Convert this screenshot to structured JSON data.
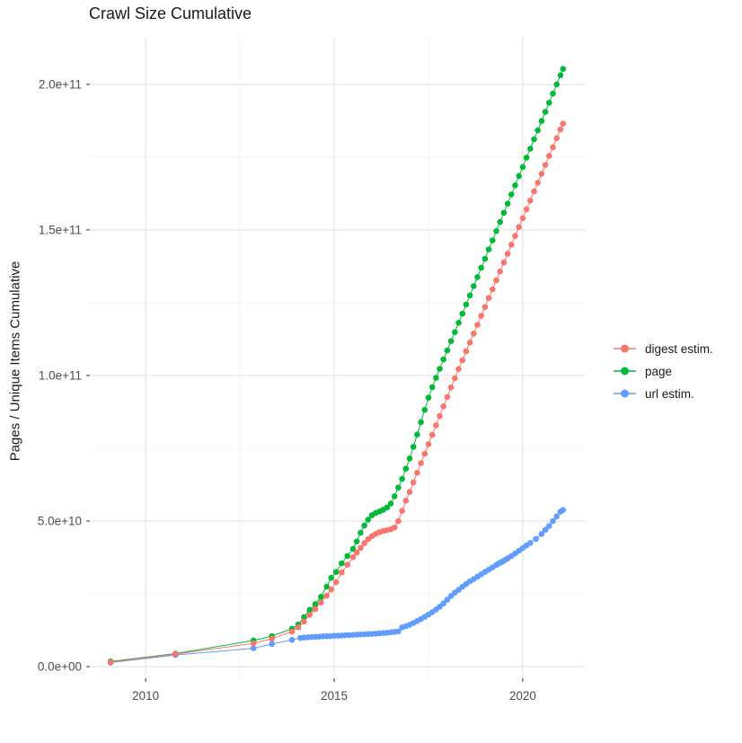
{
  "title": "Crawl Size Cumulative",
  "y_axis_label": "Pages / Unique Items Cumulative",
  "colors": {
    "digest": "#F8766D",
    "page": "#00BA38",
    "url": "#619CFF",
    "grid_major": "#E5E5E5",
    "grid_minor": "#F2F2F2",
    "tick_mark": "#333333",
    "tick_text": "#4D4D4D",
    "title_text": "#1A1A1A"
  },
  "chart_data": {
    "type": "scatter",
    "title": "Crawl Size Cumulative",
    "xlabel": "",
    "ylabel": "Pages / Unique Items Cumulative",
    "grid": "on",
    "legend_position": "right",
    "points_unit": "1e9",
    "x_range": [
      2008.52,
      2021.67
    ],
    "y_range_e9": [
      -4,
      216
    ],
    "x_ticks": {
      "values": [
        2010,
        2015,
        2020
      ],
      "labels": [
        "2010",
        "2015",
        "2020"
      ],
      "minor": [
        2012.5,
        2017.5
      ]
    },
    "y_ticks": {
      "values_e9": [
        0,
        50,
        100,
        150,
        200
      ],
      "labels": [
        "0.0e+00",
        "5.0e+10",
        "1.0e+11",
        "1.5e+11",
        "2.0e+11"
      ],
      "minor_e9": [
        25,
        75,
        125,
        175
      ]
    },
    "draw_order": [
      "page",
      "url estim.",
      "digest estim."
    ],
    "series": [
      {
        "name": "digest estim.",
        "color": "#F8766D",
        "points": [
          [
            2009.07,
            1.6
          ],
          [
            2010.79,
            4.3
          ],
          [
            2012.86,
            8.0
          ],
          [
            2013.35,
            9.6
          ],
          [
            2013.88,
            12.0
          ],
          [
            2014.05,
            13.5
          ],
          [
            2014.2,
            15.5
          ],
          [
            2014.35,
            17.8
          ],
          [
            2014.5,
            19.8
          ],
          [
            2014.65,
            22.0
          ],
          [
            2014.8,
            24.4
          ],
          [
            2014.92,
            26.5
          ],
          [
            2015.05,
            29.0
          ],
          [
            2015.2,
            32.4
          ],
          [
            2015.35,
            35.0
          ],
          [
            2015.5,
            37.6
          ],
          [
            2015.6,
            39.2
          ],
          [
            2015.7,
            40.8
          ],
          [
            2015.8,
            42.4
          ],
          [
            2015.9,
            43.8
          ],
          [
            2016.0,
            44.8
          ],
          [
            2016.1,
            45.6
          ],
          [
            2016.2,
            46.2
          ],
          [
            2016.3,
            46.6
          ],
          [
            2016.4,
            46.9
          ],
          [
            2016.5,
            47.2
          ],
          [
            2016.6,
            47.8
          ],
          [
            2016.7,
            50.0
          ],
          [
            2016.8,
            53.5
          ],
          [
            2016.9,
            57.0
          ],
          [
            2017.0,
            60.0
          ],
          [
            2017.1,
            63.3
          ],
          [
            2017.2,
            66.6
          ],
          [
            2017.3,
            69.9
          ],
          [
            2017.4,
            73.1
          ],
          [
            2017.5,
            76.4
          ],
          [
            2017.6,
            79.6
          ],
          [
            2017.7,
            82.9
          ],
          [
            2017.8,
            86.1
          ],
          [
            2017.9,
            89.4
          ],
          [
            2018.0,
            92.6
          ],
          [
            2018.1,
            95.9
          ],
          [
            2018.2,
            99.1
          ],
          [
            2018.3,
            102.2
          ],
          [
            2018.4,
            105.2
          ],
          [
            2018.5,
            108.3
          ],
          [
            2018.6,
            111.3
          ],
          [
            2018.7,
            114.4
          ],
          [
            2018.8,
            117.4
          ],
          [
            2018.9,
            120.5
          ],
          [
            2019.0,
            123.5
          ],
          [
            2019.1,
            126.6
          ],
          [
            2019.2,
            129.6
          ],
          [
            2019.3,
            132.7
          ],
          [
            2019.4,
            135.7
          ],
          [
            2019.5,
            138.8
          ],
          [
            2019.6,
            141.8
          ],
          [
            2019.7,
            144.9
          ],
          [
            2019.8,
            147.9
          ],
          [
            2019.9,
            151.0
          ],
          [
            2020.0,
            154.0
          ],
          [
            2020.1,
            157.1
          ],
          [
            2020.2,
            160.1
          ],
          [
            2020.3,
            163.2
          ],
          [
            2020.4,
            166.2
          ],
          [
            2020.5,
            169.3
          ],
          [
            2020.6,
            172.3
          ],
          [
            2020.7,
            175.4
          ],
          [
            2020.8,
            178.4
          ],
          [
            2020.9,
            181.5
          ],
          [
            2021.0,
            184.5
          ],
          [
            2021.07,
            186.5
          ]
        ]
      },
      {
        "name": "page",
        "color": "#00BA38",
        "points": [
          [
            2009.07,
            1.8
          ],
          [
            2010.79,
            4.5
          ],
          [
            2012.86,
            9.0
          ],
          [
            2013.35,
            10.5
          ],
          [
            2013.88,
            13.0
          ],
          [
            2014.05,
            14.5
          ],
          [
            2014.2,
            17.0
          ],
          [
            2014.35,
            19.5
          ],
          [
            2014.5,
            21.5
          ],
          [
            2014.65,
            24.0
          ],
          [
            2014.8,
            27.5
          ],
          [
            2014.92,
            30.5
          ],
          [
            2015.05,
            32.5
          ],
          [
            2015.2,
            35.5
          ],
          [
            2015.35,
            38.0
          ],
          [
            2015.5,
            40.5
          ],
          [
            2015.6,
            43.0
          ],
          [
            2015.7,
            46.0
          ],
          [
            2015.8,
            48.5
          ],
          [
            2015.9,
            50.5
          ],
          [
            2016.0,
            52.0
          ],
          [
            2016.1,
            52.8
          ],
          [
            2016.2,
            53.3
          ],
          [
            2016.3,
            53.9
          ],
          [
            2016.4,
            54.7
          ],
          [
            2016.5,
            56.0
          ],
          [
            2016.6,
            58.5
          ],
          [
            2016.7,
            61.5
          ],
          [
            2016.8,
            64.5
          ],
          [
            2016.9,
            68.0
          ],
          [
            2017.0,
            71.5
          ],
          [
            2017.1,
            75.5
          ],
          [
            2017.2,
            79.7
          ],
          [
            2017.3,
            84.0
          ],
          [
            2017.4,
            88.2
          ],
          [
            2017.5,
            92.4
          ],
          [
            2017.6,
            96.0
          ],
          [
            2017.7,
            99.2
          ],
          [
            2017.8,
            102.3
          ],
          [
            2017.9,
            105.5
          ],
          [
            2018.0,
            108.6
          ],
          [
            2018.1,
            111.8
          ],
          [
            2018.2,
            114.9
          ],
          [
            2018.3,
            118.1
          ],
          [
            2018.4,
            121.2
          ],
          [
            2018.5,
            124.4
          ],
          [
            2018.6,
            127.5
          ],
          [
            2018.7,
            130.7
          ],
          [
            2018.8,
            133.8
          ],
          [
            2018.9,
            137.0
          ],
          [
            2019.0,
            140.1
          ],
          [
            2019.1,
            143.3
          ],
          [
            2019.2,
            146.4
          ],
          [
            2019.3,
            149.6
          ],
          [
            2019.4,
            152.7
          ],
          [
            2019.5,
            155.9
          ],
          [
            2019.6,
            159.0
          ],
          [
            2019.7,
            162.2
          ],
          [
            2019.8,
            165.3
          ],
          [
            2019.9,
            168.5
          ],
          [
            2020.0,
            171.6
          ],
          [
            2020.1,
            174.8
          ],
          [
            2020.2,
            177.9
          ],
          [
            2020.3,
            181.1
          ],
          [
            2020.4,
            184.2
          ],
          [
            2020.5,
            187.4
          ],
          [
            2020.6,
            190.5
          ],
          [
            2020.7,
            193.7
          ],
          [
            2020.8,
            196.8
          ],
          [
            2020.9,
            200.0
          ],
          [
            2021.0,
            203.1
          ],
          [
            2021.07,
            205.3
          ]
        ]
      },
      {
        "name": "url estim.",
        "color": "#619CFF",
        "points": [
          [
            2009.07,
            1.4
          ],
          [
            2010.79,
            4.0
          ],
          [
            2012.86,
            6.3
          ],
          [
            2013.35,
            7.8
          ],
          [
            2013.88,
            9.2
          ],
          [
            2014.1,
            9.9
          ],
          [
            2014.2,
            10.0
          ],
          [
            2014.3,
            10.1
          ],
          [
            2014.4,
            10.2
          ],
          [
            2014.5,
            10.25
          ],
          [
            2014.6,
            10.3
          ],
          [
            2014.7,
            10.4
          ],
          [
            2014.8,
            10.45
          ],
          [
            2014.9,
            10.5
          ],
          [
            2015.0,
            10.6
          ],
          [
            2015.1,
            10.65
          ],
          [
            2015.2,
            10.7
          ],
          [
            2015.3,
            10.8
          ],
          [
            2015.4,
            10.85
          ],
          [
            2015.5,
            10.9
          ],
          [
            2015.6,
            11.0
          ],
          [
            2015.7,
            11.05
          ],
          [
            2015.8,
            11.1
          ],
          [
            2015.9,
            11.2
          ],
          [
            2016.0,
            11.25
          ],
          [
            2016.1,
            11.35
          ],
          [
            2016.2,
            11.45
          ],
          [
            2016.3,
            11.55
          ],
          [
            2016.4,
            11.65
          ],
          [
            2016.5,
            11.8
          ],
          [
            2016.6,
            11.95
          ],
          [
            2016.7,
            12.1
          ],
          [
            2016.8,
            13.5
          ],
          [
            2016.9,
            13.9
          ],
          [
            2017.0,
            14.4
          ],
          [
            2017.1,
            15.0
          ],
          [
            2017.2,
            15.7
          ],
          [
            2017.3,
            16.4
          ],
          [
            2017.4,
            17.1
          ],
          [
            2017.5,
            17.9
          ],
          [
            2017.6,
            18.7
          ],
          [
            2017.7,
            19.6
          ],
          [
            2017.8,
            20.6
          ],
          [
            2017.9,
            21.7
          ],
          [
            2018.0,
            23.0
          ],
          [
            2018.1,
            24.3
          ],
          [
            2018.2,
            25.4
          ],
          [
            2018.3,
            26.4
          ],
          [
            2018.4,
            27.4
          ],
          [
            2018.5,
            28.4
          ],
          [
            2018.6,
            29.3
          ],
          [
            2018.7,
            30.1
          ],
          [
            2018.8,
            30.9
          ],
          [
            2018.9,
            31.7
          ],
          [
            2019.0,
            32.5
          ],
          [
            2019.1,
            33.3
          ],
          [
            2019.2,
            34.1
          ],
          [
            2019.3,
            34.9
          ],
          [
            2019.35,
            35.3
          ],
          [
            2019.4,
            35.7
          ],
          [
            2019.45,
            36.0
          ],
          [
            2019.5,
            36.4
          ],
          [
            2019.55,
            36.8
          ],
          [
            2019.6,
            37.2
          ],
          [
            2019.7,
            38.0
          ],
          [
            2019.8,
            38.9
          ],
          [
            2019.9,
            39.8
          ],
          [
            2020.0,
            40.7
          ],
          [
            2020.1,
            41.6
          ],
          [
            2020.2,
            42.5
          ],
          [
            2020.35,
            43.9
          ],
          [
            2020.5,
            45.6
          ],
          [
            2020.6,
            47.0
          ],
          [
            2020.7,
            48.3
          ],
          [
            2020.8,
            50.0
          ],
          [
            2020.9,
            51.6
          ],
          [
            2021.0,
            53.2
          ],
          [
            2021.07,
            53.8
          ]
        ]
      }
    ]
  },
  "legend": {
    "items": [
      {
        "label": "digest estim.",
        "color": "#F8766D"
      },
      {
        "label": "page",
        "color": "#00BA38"
      },
      {
        "label": "url estim.",
        "color": "#619CFF"
      }
    ]
  }
}
